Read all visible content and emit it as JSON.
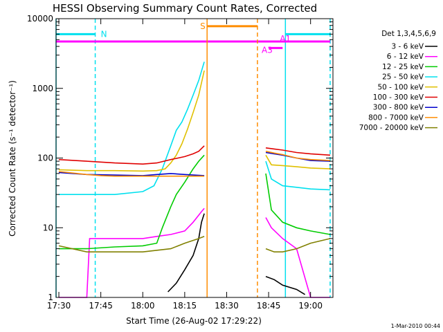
{
  "chart_data": {
    "type": "line",
    "title": "HESSI Observing Summary Count Rates, Corrected",
    "xlabel": "Start Time (26-Aug-02 17:29:22)",
    "ylabel": "Corrected Count Rate (s⁻¹ detector⁻¹)",
    "yscale": "log",
    "ylim": [
      1,
      10000
    ],
    "xlim": [
      "17:29",
      "19:08"
    ],
    "x_ticks": [
      "17:30",
      "17:45",
      "18:00",
      "18:15",
      "18:30",
      "18:45",
      "19:00"
    ],
    "y_ticks": [
      "1",
      "10",
      "100",
      "1000",
      "10000"
    ],
    "legend_title": "Det 1,3,4,5,6,9",
    "legend_position": "right",
    "data_gap": [
      "18:23",
      "18:44"
    ],
    "series": [
      {
        "name": "3 - 6 keV",
        "color": "#000000",
        "points": [
          [
            "18:09",
            1.2
          ],
          [
            "18:12",
            1.6
          ],
          [
            "18:15",
            2.5
          ],
          [
            "18:18",
            4
          ],
          [
            "18:20",
            7
          ],
          [
            "18:21",
            12
          ],
          [
            "18:22",
            16
          ],
          [
            "18:44",
            2.0
          ],
          [
            "18:47",
            1.8
          ],
          [
            "18:50",
            1.5
          ],
          [
            "18:55",
            1.3
          ],
          [
            "18:58",
            1.1
          ]
        ]
      },
      {
        "name": "6 - 12 keV",
        "color": "#ff00ff",
        "points": [
          [
            "17:30",
            1.0
          ],
          [
            "17:40",
            1.0
          ],
          [
            "17:41",
            7
          ],
          [
            "17:50",
            7
          ],
          [
            "18:00",
            7
          ],
          [
            "18:05",
            7.5
          ],
          [
            "18:10",
            8
          ],
          [
            "18:15",
            9
          ],
          [
            "18:18",
            12
          ],
          [
            "18:21",
            17
          ],
          [
            "18:22",
            19
          ],
          [
            "18:44",
            14
          ],
          [
            "18:46",
            10
          ],
          [
            "18:50",
            7
          ],
          [
            "18:55",
            5
          ],
          [
            "19:00",
            1.0
          ],
          [
            "19:07",
            1.0
          ]
        ]
      },
      {
        "name": "12 - 25 keV",
        "color": "#00cc00",
        "points": [
          [
            "17:30",
            5
          ],
          [
            "17:40",
            5
          ],
          [
            "17:50",
            5.3
          ],
          [
            "18:00",
            5.5
          ],
          [
            "18:05",
            6
          ],
          [
            "18:07",
            10
          ],
          [
            "18:10",
            20
          ],
          [
            "18:12",
            30
          ],
          [
            "18:15",
            45
          ],
          [
            "18:18",
            70
          ],
          [
            "18:20",
            90
          ],
          [
            "18:22",
            110
          ],
          [
            "18:44",
            60
          ],
          [
            "18:46",
            18
          ],
          [
            "18:50",
            12
          ],
          [
            "18:55",
            10
          ],
          [
            "19:00",
            9
          ],
          [
            "19:07",
            8
          ]
        ]
      },
      {
        "name": "25 - 50 keV",
        "color": "#00e0ee",
        "points": [
          [
            "17:30",
            30
          ],
          [
            "17:40",
            30
          ],
          [
            "17:50",
            30
          ],
          [
            "18:00",
            33
          ],
          [
            "18:04",
            40
          ],
          [
            "18:07",
            70
          ],
          [
            "18:10",
            150
          ],
          [
            "18:12",
            250
          ],
          [
            "18:14",
            330
          ],
          [
            "18:16",
            500
          ],
          [
            "18:18",
            800
          ],
          [
            "18:20",
            1300
          ],
          [
            "18:22",
            2400
          ],
          [
            "18:44",
            90
          ],
          [
            "18:46",
            50
          ],
          [
            "18:50",
            40
          ],
          [
            "18:55",
            38
          ],
          [
            "19:00",
            36
          ],
          [
            "19:07",
            35
          ]
        ]
      },
      {
        "name": "50 - 100 keV",
        "color": "#e0c000",
        "points": [
          [
            "17:30",
            68
          ],
          [
            "17:40",
            66
          ],
          [
            "17:50",
            66
          ],
          [
            "18:00",
            65
          ],
          [
            "18:05",
            66
          ],
          [
            "18:08",
            70
          ],
          [
            "18:10",
            85
          ],
          [
            "18:12",
            110
          ],
          [
            "18:14",
            160
          ],
          [
            "18:16",
            260
          ],
          [
            "18:18",
            450
          ],
          [
            "18:20",
            800
          ],
          [
            "18:22",
            1800
          ],
          [
            "18:44",
            110
          ],
          [
            "18:46",
            80
          ],
          [
            "18:50",
            78
          ],
          [
            "18:55",
            75
          ],
          [
            "19:00",
            72
          ],
          [
            "19:07",
            70
          ]
        ]
      },
      {
        "name": "100 - 300 keV",
        "color": "#e00000",
        "points": [
          [
            "17:30",
            95
          ],
          [
            "17:40",
            90
          ],
          [
            "17:50",
            85
          ],
          [
            "18:00",
            82
          ],
          [
            "18:05",
            85
          ],
          [
            "18:10",
            95
          ],
          [
            "18:15",
            105
          ],
          [
            "18:18",
            115
          ],
          [
            "18:20",
            125
          ],
          [
            "18:22",
            150
          ],
          [
            "18:44",
            140
          ],
          [
            "18:47",
            135
          ],
          [
            "18:50",
            130
          ],
          [
            "18:55",
            120
          ],
          [
            "19:00",
            115
          ],
          [
            "19:07",
            110
          ]
        ]
      },
      {
        "name": "300 - 800 keV",
        "color": "#0000cc",
        "points": [
          [
            "17:30",
            62
          ],
          [
            "17:40",
            58
          ],
          [
            "17:50",
            57
          ],
          [
            "18:00",
            56
          ],
          [
            "18:05",
            58
          ],
          [
            "18:10",
            60
          ],
          [
            "18:15",
            58
          ],
          [
            "18:22",
            56
          ],
          [
            "18:44",
            120
          ],
          [
            "18:47",
            115
          ],
          [
            "18:50",
            110
          ],
          [
            "18:55",
            100
          ],
          [
            "19:00",
            92
          ],
          [
            "19:07",
            90
          ]
        ]
      },
      {
        "name": "800 - 7000 keV",
        "color": "#ff8c00",
        "points": [
          [
            "17:30",
            64
          ],
          [
            "17:40",
            58
          ],
          [
            "17:45",
            56
          ],
          [
            "17:50",
            55
          ],
          [
            "18:00",
            55
          ],
          [
            "18:10",
            55
          ],
          [
            "18:22",
            55
          ],
          [
            "18:44",
            125
          ],
          [
            "18:47",
            118
          ],
          [
            "18:50",
            112
          ],
          [
            "18:55",
            100
          ],
          [
            "19:00",
            95
          ],
          [
            "19:07",
            92
          ]
        ]
      },
      {
        "name": "7000 - 20000 keV",
        "color": "#808000",
        "points": [
          [
            "17:30",
            5.5
          ],
          [
            "17:40",
            4.5
          ],
          [
            "17:50",
            4.5
          ],
          [
            "18:00",
            4.5
          ],
          [
            "18:10",
            5
          ],
          [
            "18:15",
            6
          ],
          [
            "18:20",
            7
          ],
          [
            "18:22",
            7.5
          ],
          [
            "18:44",
            5
          ],
          [
            "18:47",
            4.5
          ],
          [
            "18:50",
            4.5
          ],
          [
            "18:55",
            5
          ],
          [
            "19:00",
            6
          ],
          [
            "19:07",
            7
          ]
        ]
      }
    ],
    "annotations": [
      {
        "label": "N",
        "color": "#00e0ee",
        "level": 6000,
        "segments": [
          [
            "17:29",
            "17:43"
          ],
          [
            "18:51",
            "19:07"
          ]
        ],
        "verticals": [
          "17:29",
          "17:43",
          "18:51",
          "19:07"
        ]
      },
      {
        "label": "",
        "color": "#ff00ff",
        "level": 4700,
        "segments": [
          [
            "17:29",
            "19:07"
          ]
        ],
        "verticals": []
      },
      {
        "label": "S",
        "color": "#ff8c00",
        "level": 7800,
        "segments": [
          [
            "18:23",
            "18:41"
          ]
        ],
        "verticals": [
          "18:23"
        ],
        "dashed_verticals": [
          "18:41"
        ]
      },
      {
        "label": "A1",
        "color": "#ff00ff",
        "level": 4500,
        "segments": [],
        "verticals": []
      },
      {
        "label": "A3",
        "color": "#ff00ff",
        "level": 3800,
        "segments": [
          [
            "18:45",
            "18:50"
          ]
        ],
        "verticals": []
      }
    ]
  },
  "footer": {
    "timestamp": "1-Mar-2010 00:44"
  }
}
